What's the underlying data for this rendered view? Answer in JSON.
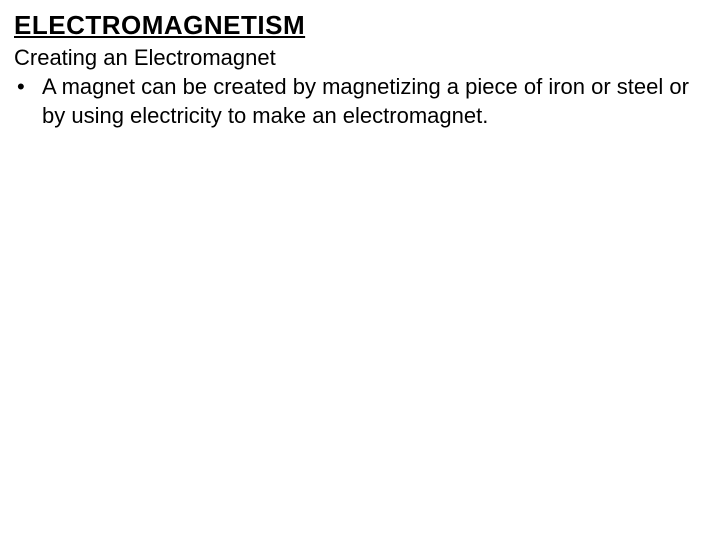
{
  "title": "ELECTROMAGNETISM",
  "subtitle": "Creating an Electromagnet",
  "bullet_marker": "•",
  "bullet_text": "A magnet can be created by magnetizing a piece of iron or steel or by using electricity to make an electromagnet.",
  "colors": {
    "background": "#ffffff",
    "text": "#000000"
  },
  "typography": {
    "title_fontsize": 26,
    "title_weight": "bold",
    "title_underline": true,
    "body_fontsize": 22,
    "font_family": "Arial"
  }
}
